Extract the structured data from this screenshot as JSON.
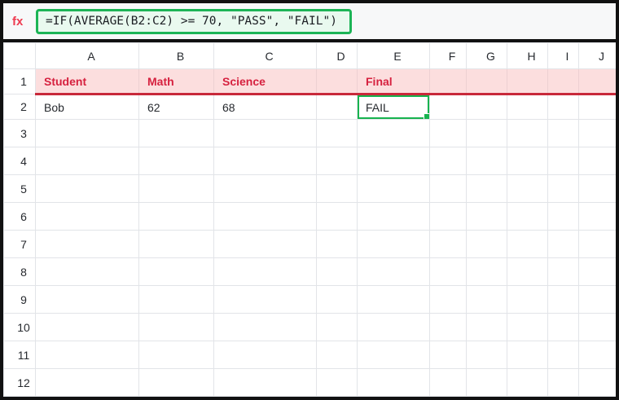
{
  "formula_bar": {
    "fx_label": "fx",
    "formula": "=IF(AVERAGE(B2:C2) >= 70, \"PASS\", \"FAIL\")"
  },
  "sheet": {
    "columns": [
      "A",
      "B",
      "C",
      "D",
      "E",
      "F",
      "G",
      "H",
      "I",
      "J"
    ],
    "rows": [
      "1",
      "2",
      "3",
      "4",
      "5",
      "6",
      "7",
      "8",
      "9",
      "10",
      "11",
      "12"
    ],
    "cells": [
      {
        "ref": "A1",
        "text": "Student"
      },
      {
        "ref": "B1",
        "text": "Math"
      },
      {
        "ref": "C1",
        "text": "Science"
      },
      {
        "ref": "E1",
        "text": "Final"
      },
      {
        "ref": "A2",
        "text": "Bob"
      },
      {
        "ref": "B2",
        "text": "62"
      },
      {
        "ref": "C2",
        "text": "68"
      },
      {
        "ref": "E2",
        "text": "FAIL"
      }
    ],
    "selection": {
      "ref": "E2",
      "value": "FAIL"
    }
  },
  "colors": {
    "accent_green": "#1cb456",
    "selection_fill": "#e9f9ef",
    "header_text_red": "#d6213f",
    "header_fill_pink": "#fcdede",
    "header_border_red": "#c8293a",
    "fx_red": "#ee3a50",
    "window_border": "#111111"
  }
}
